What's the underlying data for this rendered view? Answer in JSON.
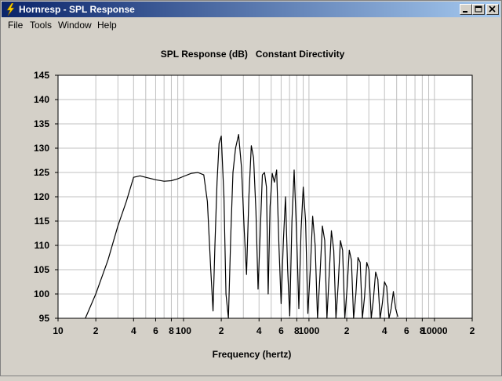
{
  "window": {
    "title": "Hornresp - SPL Response",
    "buttons": [
      "minimize",
      "maximize",
      "close"
    ]
  },
  "menu": {
    "items": [
      "File",
      "Tools",
      "Window",
      "Help"
    ]
  },
  "icons": {
    "app": "lightning-bolt-icon",
    "minimize": "minimize-icon",
    "maximize": "maximize-icon",
    "close": "close-icon"
  },
  "colors": {
    "titlebar_start": "#0a246a",
    "titlebar_end": "#a6caf0",
    "plot_background": "#ffffff",
    "grid": "#c0c0c0",
    "curve": "#000000",
    "window_background": "#d4d0c8"
  },
  "chart_data": {
    "type": "line",
    "title": "SPL Response (dB)   Constant Directivity",
    "xlabel": "Frequency (hertz)",
    "ylabel": "",
    "xscale": "log",
    "xlim": [
      10,
      20000
    ],
    "ylim": [
      95,
      145
    ],
    "grid": true,
    "yticks": [
      95,
      100,
      105,
      110,
      115,
      120,
      125,
      130,
      135,
      140,
      145
    ],
    "ytick_labels": [
      "95",
      "100",
      "105",
      "110",
      "115",
      "120",
      "125",
      "130",
      "135",
      "140",
      "145"
    ],
    "xticks": [
      10,
      20,
      40,
      60,
      80,
      100,
      200,
      400,
      600,
      800,
      1000,
      2000,
      4000,
      6000,
      8000,
      10000,
      20000
    ],
    "xtick_labels": [
      "10",
      "2",
      "4",
      "6",
      "8",
      "100",
      "2",
      "4",
      "6",
      "8",
      "1000",
      "2",
      "4",
      "6",
      "8",
      "10000",
      "2"
    ],
    "series": [
      {
        "x": [
          16.5,
          20,
          25,
          30,
          35,
          40,
          45,
          50,
          60,
          70,
          80,
          90,
          100,
          115,
          130,
          145,
          155,
          165,
          172,
          178,
          185,
          192,
          200,
          210,
          218,
          228,
          238,
          248,
          260,
          275,
          290,
          305,
          318,
          332,
          347,
          362,
          378,
          393,
          408,
          425,
          442,
          458,
          473,
          490,
          510,
          530,
          553,
          576,
          600,
          625,
          650,
          676,
          703,
          732,
          762,
          795,
          830,
          865,
          900,
          940,
          980,
          1025,
          1070,
          1120,
          1170,
          1225,
          1280,
          1335,
          1390,
          1450,
          1510,
          1575,
          1640,
          1710,
          1780,
          1855,
          1930,
          2010,
          2095,
          2180,
          2270,
          2365,
          2460,
          2560,
          2665,
          2775,
          2890,
          3010,
          3135,
          3265,
          3400,
          3540,
          3690,
          3840,
          4000,
          4165,
          4340,
          4520,
          4710,
          4905,
          5110
        ],
        "y": [
          95,
          100,
          107,
          114,
          119,
          124,
          124.3,
          124,
          123.5,
          123.2,
          123.3,
          123.7,
          124.2,
          124.8,
          125,
          124.5,
          119,
          105,
          96.5,
          110,
          123,
          131,
          132.5,
          120,
          100,
          95,
          112,
          125,
          130,
          132.8,
          126,
          113,
          104,
          120,
          130.5,
          128,
          117,
          101,
          112,
          124.5,
          125,
          122,
          100,
          118,
          124.8,
          123,
          125.5,
          110,
          98,
          111,
          120,
          105,
          95.5,
          115,
          125.5,
          113,
          97,
          113,
          122,
          115,
          96,
          105,
          116,
          110,
          95,
          104,
          114,
          111,
          95,
          104,
          113,
          109,
          95,
          102,
          111,
          109,
          95,
          101,
          109,
          107,
          95,
          100,
          107.5,
          106.5,
          95,
          99.5,
          106.5,
          105,
          95,
          99,
          104.5,
          103,
          95,
          98,
          102.5,
          101.5,
          95,
          97,
          100.5,
          97,
          95.3
        ]
      }
    ]
  }
}
